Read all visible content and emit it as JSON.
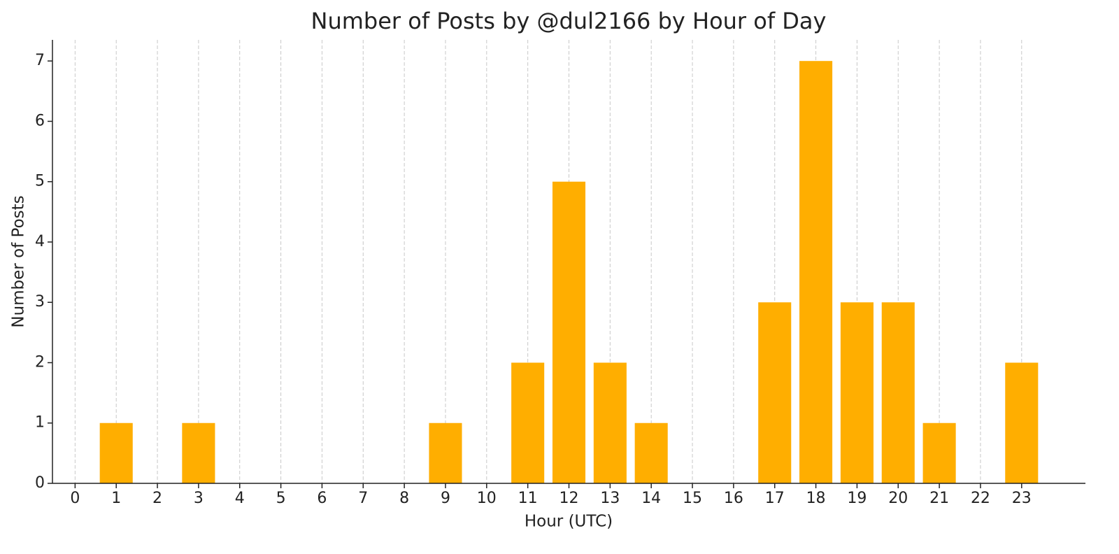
{
  "chart_data": {
    "type": "bar",
    "title": "Number of Posts by @dul2166 by Hour of Day",
    "x_label": "Hour (UTC)",
    "y_label": "Number of Posts",
    "x": [
      1,
      3,
      9,
      11,
      12,
      13,
      14,
      17,
      18,
      19,
      20,
      21,
      23
    ],
    "values": [
      1,
      1,
      1,
      2,
      5,
      2,
      1,
      3,
      7,
      3,
      3,
      1,
      2
    ],
    "color": "#ffae00",
    "xlim": [
      -0.55,
      24.55
    ],
    "xticks": [
      0,
      1,
      2,
      3,
      4,
      5,
      6,
      7,
      8,
      9,
      10,
      11,
      12,
      13,
      14,
      15,
      16,
      17,
      18,
      19,
      20,
      21,
      22,
      23
    ],
    "ylim": [
      0,
      7.35
    ],
    "yticks": [
      0,
      1,
      2,
      3,
      4,
      5,
      6,
      7
    ],
    "grid": "x"
  }
}
